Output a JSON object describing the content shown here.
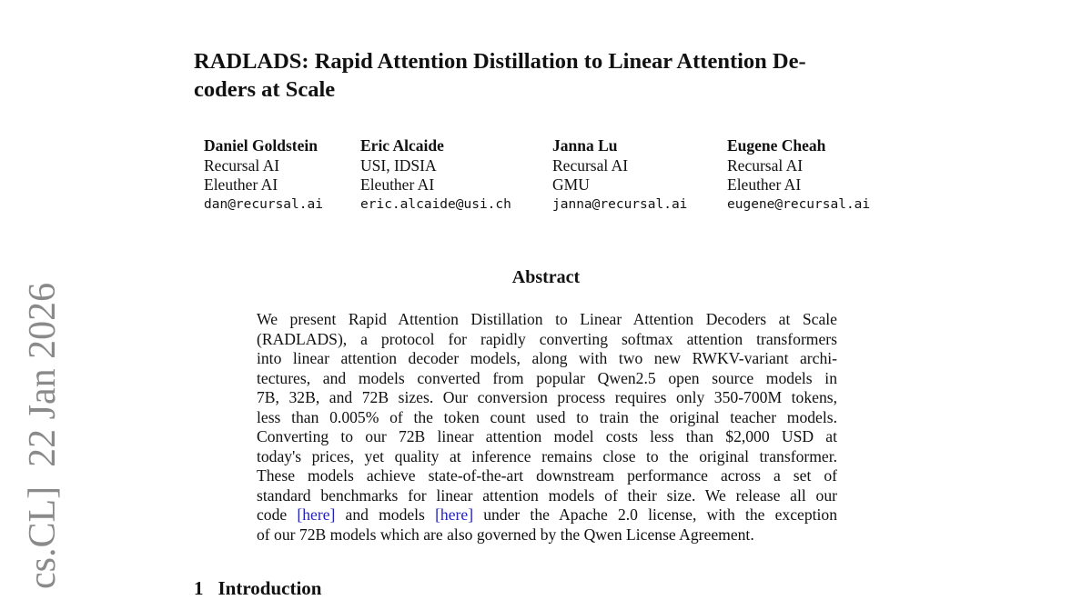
{
  "title_lines": [
    "RADLADS: Rapid Attention Distillation to Linear Attention De-",
    "coders at Scale"
  ],
  "authors": [
    {
      "name": "Daniel Goldstein",
      "aff1": "Recursal AI",
      "aff2": "Eleuther AI",
      "email": "dan@recursal.ai"
    },
    {
      "name": "Eric Alcaide",
      "aff1": "USI, IDSIA",
      "aff2": "Eleuther AI",
      "email": "eric.alcaide@usi.ch"
    },
    {
      "name": "Janna Lu",
      "aff1": "Recursal AI",
      "aff2": "GMU",
      "email": "janna@recursal.ai"
    },
    {
      "name": "Eugene Cheah",
      "aff1": "Recursal AI",
      "aff2": "Eleuther AI",
      "email": "eugene@recursal.ai"
    }
  ],
  "abstract": {
    "heading": "Abstract",
    "lines": [
      "We present Rapid Attention Distillation to Linear Attention Decoders at Scale",
      "(RADLADS), a protocol for rapidly converting softmax attention transformers",
      "into linear attention decoder models, along with two new RWKV-variant archi-",
      "tectures, and models converted from popular Qwen2.5 open source models in",
      "7B, 32B, and 72B sizes. Our conversion process requires only 350-700M tokens,",
      "less than 0.005% of the token count used to train the original teacher models.",
      "Converting to our 72B linear attention model costs less than $2,000 USD at",
      "today's prices, yet quality at inference remains close to the original transformer.",
      "These models achieve state-of-the-art downstream performance across a set of",
      "standard benchmarks for linear attention models of their size. We release all our"
    ],
    "line11": {
      "pre": "code ",
      "link1": "[here]",
      "mid": " and models ",
      "link2": "[here]",
      "post": " under the Apache 2.0 license, with the exception"
    },
    "last_line": "of our 72B models which are also governed by the Qwen License Agreement."
  },
  "arxiv_stamp": "cs.CL]  22 Jan 2026",
  "section": {
    "number": "1",
    "title": "Introduction"
  },
  "colors": {
    "link": "#2222bb",
    "stamp": "#8a8a8a"
  }
}
